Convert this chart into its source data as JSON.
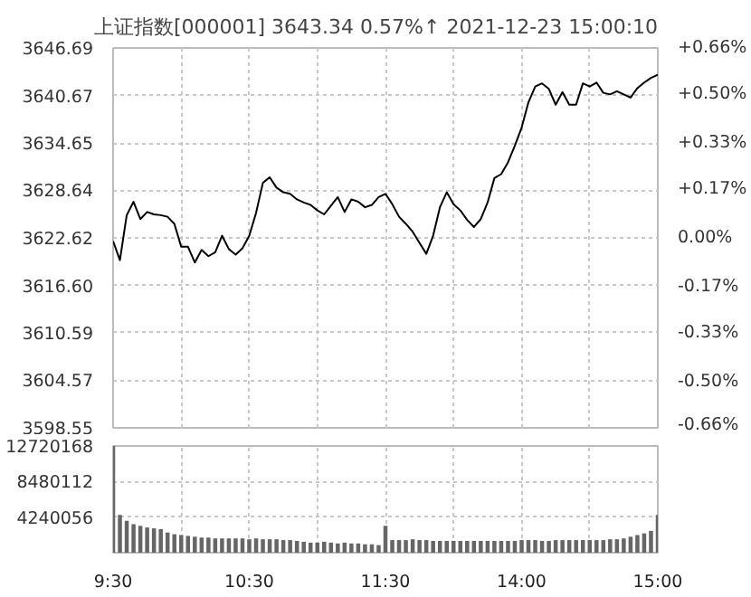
{
  "chart_data": [
    {
      "type": "line",
      "title": "上证指数[000001]  3643.34  0.57%↑  2021-12-23 15:00:10",
      "categories": [
        null,
        null,
        null,
        null,
        null,
        null,
        null,
        null,
        null,
        null,
        null,
        null,
        null,
        null,
        null,
        null,
        null,
        null,
        null,
        null,
        null,
        null,
        null,
        null,
        null,
        null,
        null,
        null,
        null,
        null,
        null,
        null,
        null,
        null,
        null,
        null,
        null,
        null,
        null,
        null,
        null,
        null,
        null,
        null,
        null,
        null,
        null,
        null,
        null,
        null,
        null,
        null,
        null,
        null,
        null,
        null,
        null,
        null,
        null,
        null,
        null,
        null,
        null,
        null,
        null,
        null,
        null,
        null,
        null,
        null,
        null,
        null,
        null,
        null,
        null,
        null,
        null,
        null,
        null,
        null,
        null
      ],
      "series": [
        {
          "color": "#000000",
          "values": [
            3622.2,
            3619.8,
            3625.5,
            3627.2,
            3625.0,
            3625.9,
            3625.6,
            3625.5,
            3625.3,
            3624.4,
            3621.5,
            3621.5,
            3619.5,
            3621.1,
            3620.3,
            3620.8,
            3622.9,
            3621.2,
            3620.5,
            3621.3,
            3622.9,
            3625.8,
            3629.6,
            3630.3,
            3629.0,
            3628.4,
            3628.2,
            3627.5,
            3627.1,
            3626.8,
            3626.1,
            3625.6,
            3626.7,
            3627.8,
            3625.9,
            3627.5,
            3627.2,
            3626.5,
            3626.8,
            3627.8,
            3628.2,
            3626.9,
            3625.3,
            3624.4,
            3623.4,
            3622.0,
            3620.6,
            3622.9,
            3626.5,
            3628.4,
            3626.9,
            3626.1,
            3624.9,
            3624.0,
            3625.0,
            3627.1,
            3630.2,
            3630.7,
            3632.2,
            3634.3,
            3636.6,
            3639.8,
            3641.8,
            3642.2,
            3641.5,
            3639.5,
            3641.1,
            3639.5,
            3639.5,
            3642.2,
            3641.8,
            3642.3,
            3641.0,
            3640.8,
            3641.2,
            3640.8,
            3640.4,
            3641.6,
            3642.3,
            3642.9,
            3643.3
          ]
        }
      ],
      "ylim": [
        3598.55,
        3646.69
      ],
      "yticks": [
        3598.55,
        3604.57,
        3610.59,
        {
          "value": 3616.6,
          "label": "3616.60"
        },
        3622.62,
        3628.64,
        3634.65,
        3640.67,
        3646.69
      ],
      "y2lim": [
        -0.66,
        0.66
      ],
      "y2ticks": [
        {
          "value": -0.66,
          "label": "-0.66%"
        },
        {
          "value": -0.5,
          "label": "-0.50%"
        },
        {
          "value": -0.33,
          "label": "-0.33%"
        },
        {
          "value": -0.17,
          "label": "-0.17%"
        },
        {
          "value": 0,
          "label": "0.00%"
        },
        {
          "value": 0.17,
          "label": "+0.17%"
        },
        {
          "value": 0.33,
          "label": "+0.33%"
        },
        {
          "value": 0.5,
          "label": "+0.50%"
        },
        {
          "value": 0.66,
          "label": "+0.66%"
        }
      ],
      "grid": true,
      "line_style": "solid"
    },
    {
      "type": "bar",
      "categories": [
        "9:30",
        null,
        null,
        null,
        null,
        null,
        null,
        null,
        null,
        null,
        null,
        null,
        null,
        null,
        null,
        null,
        null,
        null,
        null,
        null,
        "10:30",
        null,
        null,
        null,
        null,
        null,
        null,
        null,
        null,
        null,
        null,
        null,
        null,
        null,
        null,
        null,
        null,
        null,
        null,
        null,
        "11:30",
        null,
        null,
        null,
        null,
        null,
        null,
        null,
        null,
        null,
        null,
        null,
        null,
        null,
        null,
        null,
        null,
        null,
        null,
        null,
        "14:00",
        null,
        null,
        null,
        null,
        null,
        null,
        null,
        null,
        null,
        null,
        null,
        null,
        null,
        null,
        null,
        null,
        null,
        null,
        null,
        "15:00"
      ],
      "series": [
        {
          "color": "#666666",
          "values": [
            12700000,
            4500000,
            3800000,
            3400000,
            3200000,
            3000000,
            2900000,
            2800000,
            2400000,
            2200000,
            2100000,
            2000000,
            1900000,
            1800000,
            1800000,
            1700000,
            1700000,
            1700000,
            1700000,
            1700000,
            1600000,
            1700000,
            1600000,
            1600000,
            1600000,
            1500000,
            1500000,
            1400000,
            1300000,
            1200000,
            1200000,
            1300000,
            1200000,
            1100000,
            1200000,
            1100000,
            1100000,
            1000000,
            1000000,
            900000,
            3200000,
            1500000,
            1500000,
            1500000,
            1600000,
            1500000,
            1500000,
            1400000,
            1400000,
            1400000,
            1400000,
            1400000,
            1400000,
            1400000,
            1400000,
            1400000,
            1400000,
            1400000,
            1400000,
            1400000,
            1500000,
            1500000,
            1500000,
            1400000,
            1400000,
            1500000,
            1500000,
            1500000,
            1500000,
            1500000,
            1500000,
            1500000,
            1500000,
            1600000,
            1600000,
            1700000,
            1900000,
            2100000,
            2300000,
            2600000,
            4500000
          ]
        }
      ],
      "ylim": [
        0,
        12720168
      ],
      "yticks": [
        4240056,
        8480112,
        12720168
      ],
      "grid": true
    }
  ]
}
